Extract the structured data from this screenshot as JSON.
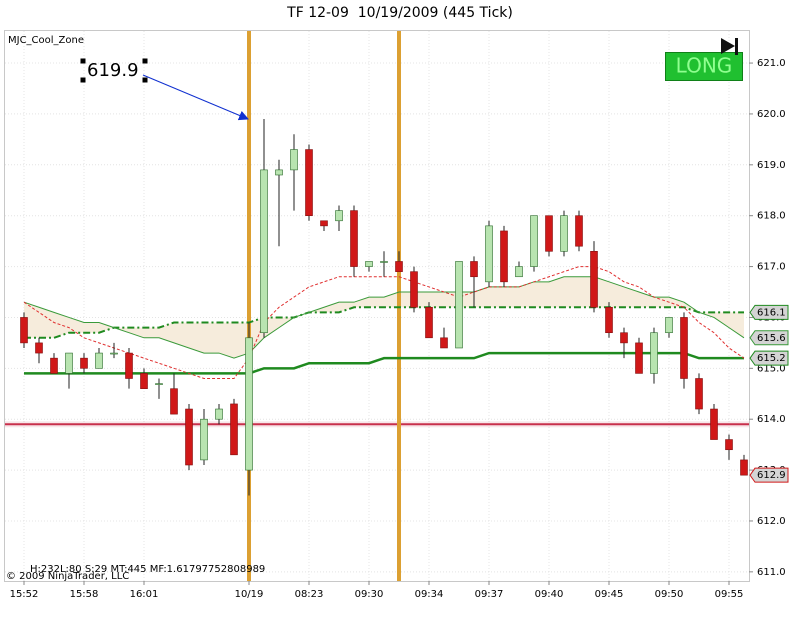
{
  "chart_data": {
    "type": "candlestick",
    "title": "TF 12-09  10/19/2009 (445 Tick)",
    "indicator_label": "MJC_Cool_Zone",
    "signal": "LONG",
    "footer_stats": "H:232L:80 S:29 MT:445 MF:1.61797752808989",
    "copyright": "© 2009 NinjaTrader, LLC",
    "categories": [
      "15:52",
      null,
      null,
      null,
      "15:58",
      null,
      null,
      null,
      "16:01",
      null,
      null,
      null,
      null,
      null,
      null,
      "10/19",
      null,
      null,
      null,
      "08:23",
      null,
      null,
      null,
      "09:30",
      null,
      null,
      null,
      "09:34",
      null,
      null,
      null,
      "09:37",
      null,
      null,
      null,
      "09:40",
      null,
      null,
      null,
      "09:45",
      null,
      null,
      null,
      "09:50",
      null,
      null,
      null,
      "09:55",
      null
    ],
    "open": [
      616.0,
      615.5,
      615.2,
      614.9,
      615.2,
      615.0,
      615.3,
      615.3,
      614.9,
      614.7,
      614.6,
      614.2,
      613.2,
      614.0,
      614.3,
      613.0,
      615.7,
      618.8,
      618.9,
      619.3,
      617.9,
      617.9,
      618.1,
      617.0,
      617.1,
      617.1,
      616.9,
      616.2,
      615.6,
      615.4,
      617.1,
      616.7,
      617.7,
      616.8,
      617.0,
      618.0,
      617.3,
      618.0,
      617.3,
      616.2,
      615.7,
      615.5,
      614.9,
      615.7,
      616.0,
      614.8,
      614.2,
      613.6,
      613.2
    ],
    "high": [
      616.1,
      615.6,
      615.3,
      615.3,
      615.3,
      615.4,
      615.5,
      615.4,
      615.0,
      614.8,
      614.9,
      614.3,
      614.2,
      614.3,
      614.4,
      615.9,
      619.9,
      619.1,
      619.6,
      619.4,
      617.9,
      618.2,
      618.2,
      617.1,
      617.3,
      617.3,
      617.0,
      616.3,
      615.8,
      617.1,
      617.2,
      617.9,
      617.8,
      617.1,
      618.0,
      618.0,
      618.1,
      618.1,
      617.5,
      616.3,
      615.8,
      615.6,
      615.8,
      616.0,
      616.1,
      614.9,
      614.3,
      613.7,
      613.3
    ],
    "low": [
      615.4,
      615.1,
      614.9,
      614.6,
      614.9,
      615.0,
      615.2,
      614.6,
      614.6,
      614.4,
      614.1,
      613.0,
      613.1,
      613.9,
      613.3,
      612.5,
      615.6,
      617.4,
      618.1,
      617.9,
      617.7,
      617.7,
      616.8,
      616.9,
      616.8,
      616.9,
      616.1,
      615.6,
      615.4,
      615.4,
      616.2,
      616.6,
      616.6,
      616.8,
      616.9,
      617.2,
      617.2,
      617.3,
      616.1,
      615.6,
      615.2,
      614.9,
      614.7,
      615.6,
      614.6,
      614.1,
      613.6,
      613.2,
      612.9
    ],
    "close": [
      615.5,
      615.3,
      614.9,
      615.3,
      615.0,
      615.3,
      615.3,
      614.8,
      614.6,
      614.7,
      614.1,
      613.1,
      614.0,
      614.2,
      613.3,
      615.6,
      618.9,
      618.9,
      619.3,
      618.0,
      617.8,
      618.1,
      617.0,
      617.1,
      617.1,
      616.9,
      616.2,
      615.6,
      615.4,
      617.1,
      616.8,
      617.8,
      616.7,
      617.0,
      618.0,
      617.3,
      618.0,
      617.4,
      616.2,
      615.7,
      615.5,
      614.9,
      615.7,
      616.0,
      614.8,
      614.2,
      613.6,
      613.4,
      612.9
    ],
    "up_color": "#b8e4b0",
    "down_color": "#d01818",
    "last_price_label": true,
    "lines": [
      {
        "color": "#1f8a1f",
        "width": 2.5,
        "dash": "none",
        "end_label": true,
        "values": [
          614.9,
          614.9,
          614.9,
          614.9,
          614.9,
          614.9,
          614.9,
          614.9,
          614.9,
          614.9,
          614.9,
          614.9,
          614.9,
          614.9,
          614.9,
          614.9,
          615.0,
          615.0,
          615.0,
          615.1,
          615.1,
          615.1,
          615.1,
          615.1,
          615.2,
          615.2,
          615.2,
          615.2,
          615.2,
          615.2,
          615.2,
          615.3,
          615.3,
          615.3,
          615.3,
          615.3,
          615.3,
          615.3,
          615.3,
          615.3,
          615.3,
          615.3,
          615.3,
          615.3,
          615.3,
          615.2,
          615.2,
          615.2,
          615.2
        ]
      },
      {
        "color": "#1f8a1f",
        "width": 2,
        "dash": "7,3,2,3",
        "end_label": true,
        "values": [
          615.6,
          615.6,
          615.6,
          615.7,
          615.7,
          615.7,
          615.8,
          615.8,
          615.8,
          615.8,
          615.9,
          615.9,
          615.9,
          615.9,
          615.9,
          615.9,
          616.0,
          616.0,
          616.0,
          616.1,
          616.1,
          616.1,
          616.2,
          616.2,
          616.2,
          616.2,
          616.2,
          616.2,
          616.2,
          616.2,
          616.2,
          616.2,
          616.2,
          616.2,
          616.2,
          616.2,
          616.2,
          616.2,
          616.2,
          616.2,
          616.2,
          616.2,
          616.2,
          616.2,
          616.2,
          616.1,
          616.1,
          616.1,
          616.1
        ]
      },
      {
        "color": "#3a9a3a",
        "width": 1,
        "dash": "none",
        "end_label": true,
        "values": [
          616.3,
          616.2,
          616.1,
          616.0,
          615.9,
          615.9,
          615.8,
          615.7,
          615.6,
          615.6,
          615.5,
          615.4,
          615.3,
          615.3,
          615.2,
          615.3,
          615.6,
          615.8,
          616.0,
          616.1,
          616.2,
          616.3,
          616.3,
          616.4,
          616.4,
          616.5,
          616.5,
          616.5,
          616.5,
          616.5,
          616.5,
          616.6,
          616.6,
          616.6,
          616.7,
          616.7,
          616.8,
          616.8,
          616.8,
          616.7,
          616.6,
          616.5,
          616.4,
          616.4,
          616.3,
          616.1,
          616.0,
          615.8,
          615.6
        ]
      },
      {
        "color": "#e03030",
        "width": 1,
        "dash": "3,2",
        "end_label": false,
        "values": [
          616.3,
          616.1,
          615.9,
          615.8,
          615.6,
          615.5,
          615.4,
          615.3,
          615.2,
          615.1,
          615.0,
          614.9,
          614.8,
          614.8,
          614.8,
          615.2,
          615.9,
          616.2,
          616.4,
          616.6,
          616.7,
          616.8,
          616.8,
          616.8,
          616.8,
          616.8,
          616.7,
          616.6,
          616.5,
          616.4,
          616.5,
          616.6,
          616.6,
          616.6,
          616.7,
          616.8,
          616.9,
          617.0,
          617.0,
          616.9,
          616.7,
          616.6,
          616.4,
          616.3,
          616.2,
          615.9,
          615.7,
          615.4,
          615.2
        ]
      }
    ],
    "band_fill": "#f6ecdc",
    "hlines": [
      {
        "value": 613.9,
        "color": "#c8304c"
      }
    ],
    "vlines": [
      15,
      25
    ],
    "vline_color": "#dca032",
    "annotation_index": 16,
    "ylim": [
      610.82,
      621.63
    ],
    "yticks": [
      {
        "value": 611,
        "label": "611.0"
      },
      {
        "value": 612,
        "label": "612.0"
      },
      {
        "value": 613,
        "label": "613.0"
      },
      {
        "value": 614,
        "label": "614.0"
      },
      {
        "value": 615,
        "label": "615.0"
      },
      {
        "value": 616,
        "label": "616.0"
      },
      {
        "value": 617,
        "label": "617.0"
      },
      {
        "value": 618,
        "label": "618.0"
      },
      {
        "value": 619,
        "label": "619.0"
      },
      {
        "value": 620,
        "label": "620.0"
      },
      {
        "value": 621,
        "label": "621.0"
      }
    ],
    "grid": true
  }
}
